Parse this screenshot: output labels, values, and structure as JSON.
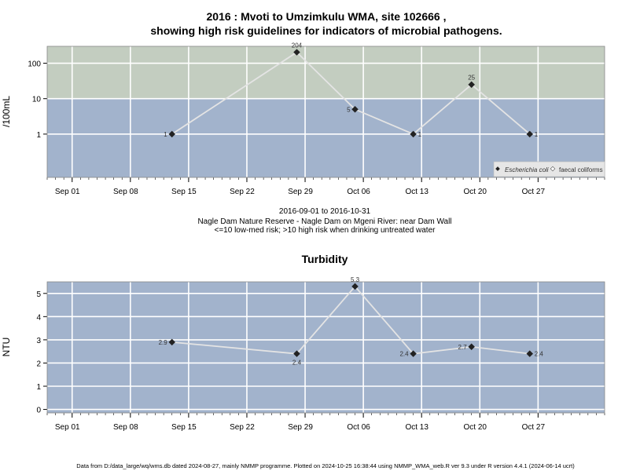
{
  "chart_data": [
    {
      "type": "line",
      "title_line1": "2016 : Mvoti to Umzimkulu WMA, site 102666 ,",
      "title_line2": "showing high risk guidelines for indicators of microbial pathogens.",
      "ylabel": "/100mL",
      "yscale": "log",
      "yticks": [
        "1",
        "10",
        "100"
      ],
      "xticks": [
        "Sep 01",
        "Sep 08",
        "Sep 15",
        "Sep 22",
        "Sep 29",
        "Oct 06",
        "Oct 13",
        "Oct 20",
        "Oct 27"
      ],
      "xlim": [
        "2016-08-29",
        "2016-11-04"
      ],
      "bands": [
        {
          "from": 10,
          "to": 300,
          "color": "#c3cdc0",
          "meaning": "high risk"
        },
        {
          "from": 0.06,
          "to": 10,
          "color": "#a2b3cc",
          "meaning": "low-med risk"
        }
      ],
      "legend": {
        "position": "bottom-right",
        "entries": [
          "Escherichia coli",
          "faecal coliforms"
        ]
      },
      "series": [
        {
          "name": "Escherichia coli",
          "points": [
            {
              "x": "2016-09-13",
              "y": 1,
              "label": "1"
            },
            {
              "x": "2016-09-28",
              "y": 204,
              "label": "204"
            },
            {
              "x": "2016-10-05",
              "y": 5,
              "label": "5"
            },
            {
              "x": "2016-10-12",
              "y": 1,
              "label": "1"
            },
            {
              "x": "2016-10-19",
              "y": 25,
              "label": "25"
            },
            {
              "x": "2016-10-26",
              "y": 1,
              "label": "1"
            }
          ]
        }
      ],
      "subtitle_lines": [
        "2016-09-01 to 2016-10-31",
        "Nagle Dam Nature Reserve - Nagle Dam on Mgeni River: near Dam Wall",
        "<=10 low-med risk; >10 high risk when drinking untreated water"
      ]
    },
    {
      "type": "line",
      "title": "Turbidity",
      "ylabel": "NTU",
      "ylim": [
        -0.15,
        5.5
      ],
      "yticks": [
        "0",
        "1",
        "2",
        "3",
        "4",
        "5"
      ],
      "xticks": [
        "Sep 01",
        "Sep 08",
        "Sep 15",
        "Sep 22",
        "Sep 29",
        "Oct 06",
        "Oct 13",
        "Oct 20",
        "Oct 27"
      ],
      "xlim": [
        "2016-08-29",
        "2016-11-04"
      ],
      "background": "#a2b3cc",
      "series": [
        {
          "name": "",
          "points": [
            {
              "x": "2016-09-13",
              "y": 2.9,
              "label": "2.9"
            },
            {
              "x": "2016-09-28",
              "y": 2.4,
              "label": "2.4"
            },
            {
              "x": "2016-10-05",
              "y": 5.3,
              "label": "5.3"
            },
            {
              "x": "2016-10-12",
              "y": 2.4,
              "label": "2.4"
            },
            {
              "x": "2016-10-19",
              "y": 2.7,
              "label": "2.7"
            },
            {
              "x": "2016-10-26",
              "y": 2.4,
              "label": "2.4"
            }
          ]
        }
      ]
    }
  ],
  "footer": "Data from D:/data_large/wq/wms.db dated 2024-08-27, mainly NMMP programme. Plotted on 2024-10-25 16:38:44 using NMMP_WMA_web.R ver 9.3 under R version 4.4.1 (2024-06-14 ucrt)"
}
